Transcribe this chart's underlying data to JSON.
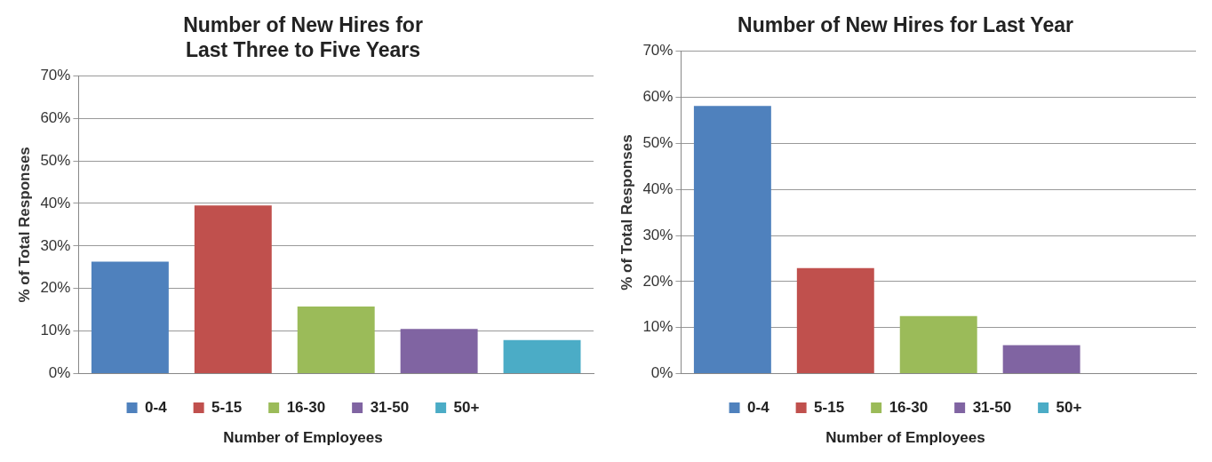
{
  "chart_data": [
    {
      "type": "bar",
      "title": [
        "Number of New Hires for",
        "Last Three to Five Years"
      ],
      "xlabel": "Number of Employees",
      "ylabel": "% of Total Responses",
      "categories": [
        null
      ],
      "series": [
        {
          "name": "0-4",
          "color": "#4f81bd",
          "values": [
            26.3
          ]
        },
        {
          "name": "5-15",
          "color": "#c0504d",
          "values": [
            39.5
          ]
        },
        {
          "name": "16-30",
          "color": "#9bbb59",
          "values": [
            15.8
          ]
        },
        {
          "name": "31-50",
          "color": "#8064a2",
          "values": [
            10.5
          ]
        },
        {
          "name": "50+",
          "color": "#4bacc6",
          "values": [
            7.9
          ]
        }
      ],
      "ylim": [
        0,
        70
      ],
      "yticks": [
        {
          "value": 0,
          "label": "0%"
        },
        {
          "value": 10,
          "label": "10%"
        },
        {
          "value": 20,
          "label": "20%"
        },
        {
          "value": 30,
          "label": "30%"
        },
        {
          "value": 40,
          "label": "40%"
        },
        {
          "value": 50,
          "label": "50%"
        },
        {
          "value": 60,
          "label": "60%"
        },
        {
          "value": 70,
          "label": "70%"
        }
      ],
      "grid": "y",
      "legend": "bottom"
    },
    {
      "type": "bar",
      "title": "Number of New Hires for Last Year",
      "xlabel": "Number of Employees",
      "ylabel": "% of Total Responses",
      "categories": [
        null
      ],
      "series": [
        {
          "name": "0-4",
          "color": "#4f81bd",
          "values": [
            58.1
          ]
        },
        {
          "name": "5-15",
          "color": "#c0504d",
          "values": [
            22.9
          ]
        },
        {
          "name": "16-30",
          "color": "#9bbb59",
          "values": [
            12.5
          ]
        },
        {
          "name": "31-50",
          "color": "#8064a2",
          "values": [
            6.2
          ]
        },
        {
          "name": "50+",
          "color": "#4bacc6",
          "values": [
            0
          ]
        }
      ],
      "ylim": [
        0,
        70
      ],
      "yticks": [
        {
          "value": 0,
          "label": "0%"
        },
        {
          "value": 10,
          "label": "10%"
        },
        {
          "value": 20,
          "label": "20%"
        },
        {
          "value": 30,
          "label": "30%"
        },
        {
          "value": 40,
          "label": "40%"
        },
        {
          "value": 50,
          "label": "50%"
        },
        {
          "value": 60,
          "label": "60%"
        },
        {
          "value": 70,
          "label": "70%"
        }
      ],
      "grid": "y",
      "legend": "bottom"
    }
  ]
}
